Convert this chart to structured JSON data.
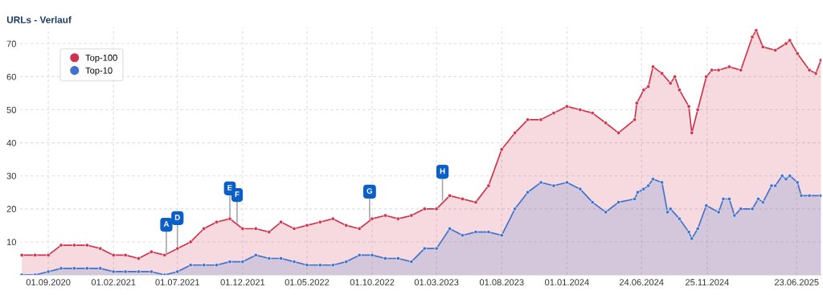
{
  "chart_data": {
    "type": "area",
    "title": "URLs - Verlauf",
    "series": [
      {
        "name": "Top-100",
        "color": "#d0334b",
        "x": [
          "2020-07",
          "2020-08",
          "2020-09",
          "2020-10",
          "2020-11",
          "2020-12",
          "2021-01",
          "2021-02",
          "2021-03",
          "2021-04",
          "2021-05",
          "2021-06",
          "2021-07",
          "2021-08",
          "2021-09",
          "2021-10",
          "2021-11",
          "2021-12",
          "2022-01",
          "2022-02",
          "2022-03",
          "2022-04",
          "2022-05",
          "2022-06",
          "2022-07",
          "2022-08",
          "2022-09",
          "2022-10",
          "2022-11",
          "2022-12",
          "2023-01",
          "2023-02",
          "2023-03",
          "2023-04",
          "2023-05",
          "2023-06",
          "2023-07",
          "2023-08",
          "2023-09",
          "2023-10",
          "2023-11",
          "2023-12",
          "2024-01",
          "2024-02",
          "2024-03",
          "2024-04",
          "2024-05",
          "2024-06-08",
          "2024-06-13",
          "2024-06-29",
          "2024-07-10",
          "2024-07-21",
          "2024-08-11",
          "2024-08-31",
          "2024-09-10",
          "2024-09-21",
          "2024-10-13",
          "2024-10-20",
          "2024-11-03",
          "2024-11-23",
          "2024-12-06",
          "2024-12-22",
          "2025-01-16",
          "2025-02-12",
          "2025-03-11",
          "2025-03-20",
          "2025-04-05",
          "2025-05-04",
          "2025-05-29",
          "2025-06-07",
          "2025-06-25",
          "2025-07-23",
          "2025-08-07",
          "2025-08-19"
        ],
        "values": [
          6,
          6,
          6,
          9,
          9,
          9,
          8,
          6,
          6,
          5,
          7,
          6,
          8,
          10,
          14,
          16,
          17,
          14,
          14,
          13,
          16,
          14,
          15,
          16,
          17,
          15,
          14,
          17,
          18,
          17,
          18,
          20,
          20,
          24,
          23,
          22,
          27,
          38,
          43,
          47,
          47,
          49,
          51,
          50,
          49,
          46,
          43,
          47,
          52,
          56,
          57,
          63,
          61,
          58,
          60,
          56,
          51,
          43,
          50,
          60,
          62,
          62,
          63,
          62,
          72,
          74,
          69,
          68,
          70,
          71,
          67,
          62,
          61,
          65
        ]
      },
      {
        "name": "Top-10",
        "color": "#3f72cc",
        "x": [
          "2020-07",
          "2020-08",
          "2020-09",
          "2020-10",
          "2020-11",
          "2020-12",
          "2021-01",
          "2021-02",
          "2021-03",
          "2021-04",
          "2021-05",
          "2021-06",
          "2021-07",
          "2021-08",
          "2021-09",
          "2021-10",
          "2021-11",
          "2021-12",
          "2022-01",
          "2022-02",
          "2022-03",
          "2022-04",
          "2022-05",
          "2022-06",
          "2022-07",
          "2022-08",
          "2022-09",
          "2022-10",
          "2022-11",
          "2022-12",
          "2023-01",
          "2023-02",
          "2023-03",
          "2023-04",
          "2023-05",
          "2023-06",
          "2023-07",
          "2023-08",
          "2023-09",
          "2023-10",
          "2023-11",
          "2023-12",
          "2024-01",
          "2024-02",
          "2024-03",
          "2024-04",
          "2024-05",
          "2024-06-08",
          "2024-06-15",
          "2024-06-29",
          "2024-07-10",
          "2024-07-21",
          "2024-08-11",
          "2024-08-24",
          "2024-08-31",
          "2024-09-21",
          "2024-10-13",
          "2024-10-20",
          "2024-11-03",
          "2024-11-23",
          "2024-12-22",
          "2025-01-02",
          "2025-01-16",
          "2025-01-28",
          "2025-02-12",
          "2025-03-11",
          "2025-03-25",
          "2025-04-05",
          "2025-04-25",
          "2025-05-04",
          "2025-05-20",
          "2025-05-29",
          "2025-06-07",
          "2025-06-25",
          "2025-07-04",
          "2025-07-23",
          "2025-08-19"
        ],
        "values": [
          0,
          0,
          1,
          2,
          2,
          2,
          2,
          1,
          1,
          1,
          1,
          0,
          1,
          3,
          3,
          3,
          4,
          4,
          6,
          5,
          5,
          4,
          3,
          3,
          3,
          4,
          6,
          6,
          5,
          5,
          4,
          8,
          8,
          14,
          12,
          13,
          13,
          12,
          20,
          25,
          28,
          27,
          28,
          26,
          22,
          19,
          22,
          23,
          25,
          26,
          27,
          29,
          28,
          19,
          20,
          17,
          13,
          11,
          14,
          21,
          19,
          23,
          23,
          18,
          20,
          20,
          23,
          22,
          27,
          27,
          30,
          29,
          30,
          28,
          24,
          24,
          24
        ]
      }
    ],
    "annotations": [
      {
        "text": "A",
        "x": "2021-06-05",
        "y": 6
      },
      {
        "text": "D",
        "x": "2021-07-01",
        "y": 8
      },
      {
        "text": "E",
        "x": "2021-11-01",
        "y": 17
      },
      {
        "text": "F",
        "x": "2021-11-18",
        "y": 15
      },
      {
        "text": "G",
        "x": "2022-09-25",
        "y": 16
      },
      {
        "text": "H",
        "x": "2023-03-15",
        "y": 22
      }
    ],
    "xlim": [
      "2020-06-26",
      "2025-08-20"
    ],
    "xticks": [
      {
        "value": "2020-09-01",
        "label": "01.09.2020"
      },
      {
        "value": "2021-02-01",
        "label": "01.02.2021"
      },
      {
        "value": "2021-07-01",
        "label": "01.07.2021"
      },
      {
        "value": "2021-12-01",
        "label": "01.12.2021"
      },
      {
        "value": "2022-05-01",
        "label": "01.05.2022"
      },
      {
        "value": "2022-10-01",
        "label": "01.10.2022"
      },
      {
        "value": "2023-03-01",
        "label": "01.03.2023"
      },
      {
        "value": "2023-08-01",
        "label": "01.08.2023"
      },
      {
        "value": "2024-01-01",
        "label": "01.01.2024"
      },
      {
        "value": "2024-06-24",
        "label": "24.06.2024"
      },
      {
        "value": "2024-11-25",
        "label": "25.11.2024"
      },
      {
        "value": "2025-06-23",
        "label": "23.06.2025"
      }
    ],
    "ylim": [
      0,
      75
    ],
    "yticks": [
      10,
      20,
      30,
      40,
      50,
      60,
      70
    ],
    "grid": true,
    "legend": "top left",
    "marker": "circle",
    "line_style": "solid"
  }
}
